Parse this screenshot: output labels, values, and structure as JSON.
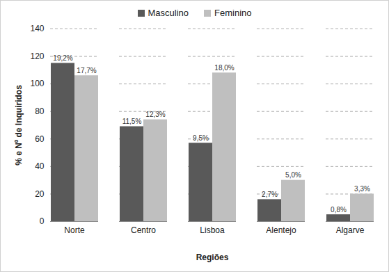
{
  "chart_data": {
    "type": "bar",
    "categories": [
      "Norte",
      "Centro",
      "Lisboa",
      "Alentejo",
      "Algarve"
    ],
    "series": [
      {
        "name": "Masculino",
        "color": "#595959",
        "values": [
          115,
          69,
          57,
          16,
          5
        ],
        "labels": [
          "19,2%",
          "11,5%",
          "9,5%",
          "2,7%",
          "0,8%"
        ]
      },
      {
        "name": "Feminino",
        "color": "#bfbfbf",
        "values": [
          106,
          74,
          108,
          30,
          20
        ],
        "labels": [
          "17,7%",
          "12,3%",
          "18,0%",
          "5,0%",
          "3,3%"
        ]
      }
    ],
    "x_label": "Regiões",
    "y_label": "% e Nº de Inquiridos",
    "ylim": [
      0,
      140
    ],
    "yticks": [
      0,
      20,
      40,
      60,
      80,
      100,
      120,
      140
    ],
    "grid": true,
    "legend": "top"
  }
}
